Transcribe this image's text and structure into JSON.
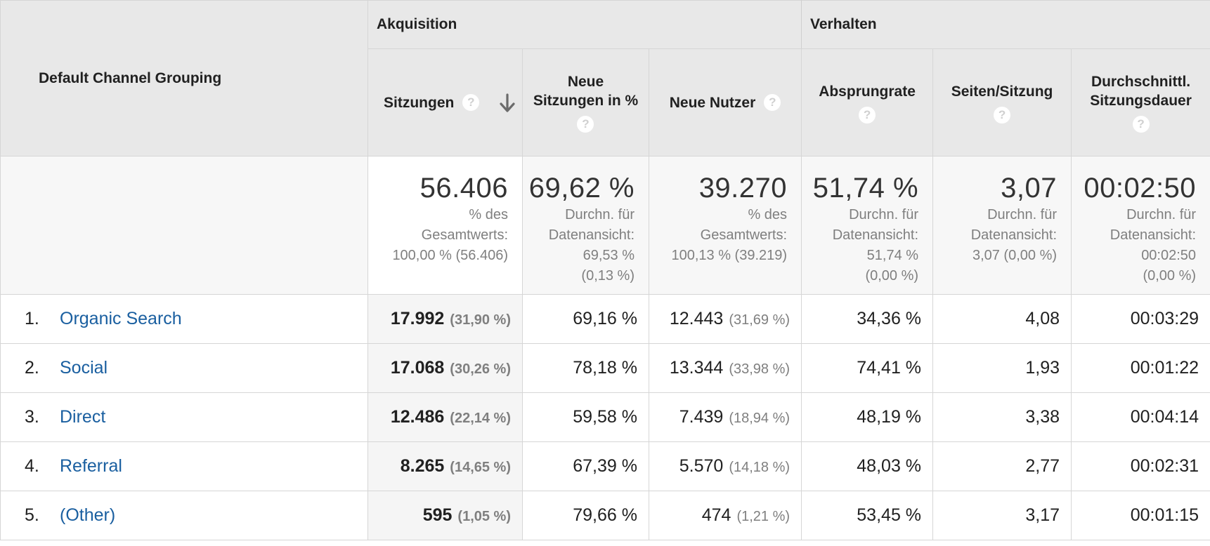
{
  "header": {
    "dimension_label": "Default Channel Grouping",
    "groups": {
      "acquisition": "Akquisition",
      "behavior": "Verhalten"
    },
    "columns": {
      "sessions": "Sitzungen",
      "new_sessions_line1": "Neue",
      "new_sessions_line2": "Sitzungen in %",
      "new_users": "Neue Nutzer",
      "bounce_rate": "Absprungrate",
      "pages_per_session": "Seiten/Sitzung",
      "avg_duration_line1": "Durchschnittl.",
      "avg_duration_line2": "Sitzungsdauer"
    },
    "help_glyph": "?",
    "sort_icon": "arrow-down-icon"
  },
  "summary": {
    "sessions": {
      "value": "56.406",
      "l1": "% des",
      "l2": "Gesamtwerts:",
      "l3": "100,00 % (56.406)"
    },
    "new_sessions": {
      "value": "69,62 %",
      "l1": "Durchn. für",
      "l2": "Datenansicht:",
      "l3": "69,53 %",
      "l4": "(0,13 %)"
    },
    "new_users": {
      "value": "39.270",
      "l1": "% des",
      "l2": "Gesamtwerts:",
      "l3": "100,13 % (39.219)"
    },
    "bounce_rate": {
      "value": "51,74 %",
      "l1": "Durchn. für",
      "l2": "Datenansicht:",
      "l3": "51,74 %",
      "l4": "(0,00 %)"
    },
    "pages_per_session": {
      "value": "3,07",
      "l1": "Durchn. für",
      "l2": "Datenansicht:",
      "l3": "3,07 (0,00 %)"
    },
    "avg_duration": {
      "value": "00:02:50",
      "l1": "Durchn. für",
      "l2": "Datenansicht:",
      "l3": "00:02:50",
      "l4": "(0,00 %)"
    }
  },
  "rows": [
    {
      "rank": "1.",
      "channel": "Organic Search",
      "sessions": "17.992",
      "sessions_pct": "(31,90 %)",
      "new_sessions": "69,16 %",
      "new_users": "12.443",
      "new_users_pct": "(31,69 %)",
      "bounce_rate": "34,36 %",
      "pages": "4,08",
      "duration": "00:03:29"
    },
    {
      "rank": "2.",
      "channel": "Social",
      "sessions": "17.068",
      "sessions_pct": "(30,26 %)",
      "new_sessions": "78,18 %",
      "new_users": "13.344",
      "new_users_pct": "(33,98 %)",
      "bounce_rate": "74,41 %",
      "pages": "1,93",
      "duration": "00:01:22"
    },
    {
      "rank": "3.",
      "channel": "Direct",
      "sessions": "12.486",
      "sessions_pct": "(22,14 %)",
      "new_sessions": "59,58 %",
      "new_users": "7.439",
      "new_users_pct": "(18,94 %)",
      "bounce_rate": "48,19 %",
      "pages": "3,38",
      "duration": "00:04:14"
    },
    {
      "rank": "4.",
      "channel": "Referral",
      "sessions": "8.265",
      "sessions_pct": "(14,65 %)",
      "new_sessions": "67,39 %",
      "new_users": "5.570",
      "new_users_pct": "(14,18 %)",
      "bounce_rate": "48,03 %",
      "pages": "2,77",
      "duration": "00:02:31"
    },
    {
      "rank": "5.",
      "channel": "(Other)",
      "sessions": "595",
      "sessions_pct": "(1,05 %)",
      "new_sessions": "79,66 %",
      "new_users": "474",
      "new_users_pct": "(1,21 %)",
      "bounce_rate": "53,45 %",
      "pages": "3,17",
      "duration": "00:01:15"
    }
  ],
  "colors": {
    "link": "#1a5fa0",
    "header_bg": "#e8e8e8",
    "muted_text": "#7f7f7f"
  }
}
